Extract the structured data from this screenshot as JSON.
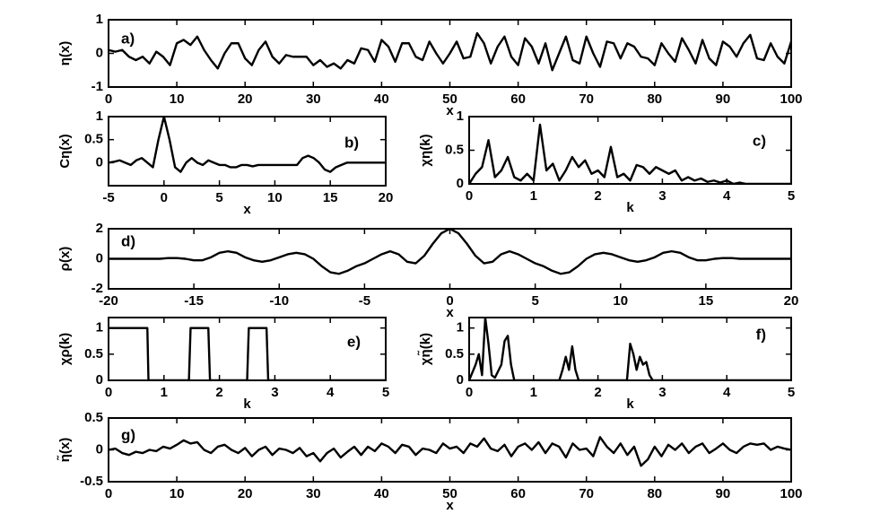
{
  "chart_data": [
    {
      "type": "line",
      "annotation": "a)",
      "xlabel": "x",
      "ylabel": "η(x)",
      "color": "#000000",
      "xlim": [
        0,
        100
      ],
      "ylim": [
        -1,
        1
      ],
      "xticks": [
        0,
        10,
        20,
        30,
        40,
        50,
        60,
        70,
        80,
        90,
        100
      ],
      "yticks": [
        -1,
        0,
        1
      ],
      "x": [
        0,
        1,
        2,
        3,
        4,
        5,
        6,
        7,
        8,
        9,
        10,
        11,
        12,
        13,
        14,
        15,
        16,
        17,
        18,
        19,
        20,
        21,
        22,
        23,
        24,
        25,
        26,
        27,
        28,
        29,
        30,
        31,
        32,
        33,
        34,
        35,
        36,
        37,
        38,
        39,
        40,
        41,
        42,
        43,
        44,
        45,
        46,
        47,
        48,
        49,
        50,
        51,
        52,
        53,
        54,
        55,
        56,
        57,
        58,
        59,
        60,
        61,
        62,
        63,
        64,
        65,
        66,
        67,
        68,
        69,
        70,
        71,
        72,
        73,
        74,
        75,
        76,
        77,
        78,
        79,
        80,
        81,
        82,
        83,
        84,
        85,
        86,
        87,
        88,
        89,
        90,
        91,
        92,
        93,
        94,
        95,
        96,
        97,
        98,
        99,
        100
      ],
      "values": [
        0.1,
        0.05,
        0.1,
        -0.1,
        -0.2,
        -0.1,
        -0.3,
        0.05,
        -0.1,
        -0.35,
        0.3,
        0.4,
        0.25,
        0.5,
        0.1,
        -0.2,
        -0.45,
        0.0,
        0.3,
        0.3,
        -0.15,
        -0.35,
        0.1,
        0.35,
        -0.1,
        -0.3,
        -0.05,
        -0.1,
        -0.1,
        -0.1,
        -0.35,
        -0.2,
        -0.4,
        -0.3,
        -0.45,
        -0.2,
        -0.3,
        0.15,
        0.1,
        -0.25,
        0.4,
        0.2,
        -0.25,
        0.3,
        0.3,
        -0.1,
        -0.2,
        0.35,
        0.0,
        -0.3,
        0.0,
        0.35,
        -0.15,
        -0.1,
        0.6,
        0.3,
        -0.3,
        0.2,
        0.5,
        -0.1,
        -0.35,
        0.45,
        0.2,
        -0.3,
        0.3,
        -0.5,
        0.0,
        0.5,
        -0.2,
        -0.3,
        0.5,
        0.0,
        -0.4,
        0.35,
        0.3,
        -0.15,
        0.3,
        0.2,
        -0.1,
        -0.15,
        -0.35,
        0.3,
        0.0,
        -0.25,
        0.45,
        0.1,
        -0.3,
        0.4,
        -0.15,
        -0.35,
        0.35,
        0.2,
        -0.1,
        0.3,
        0.55,
        -0.15,
        -0.2,
        0.3,
        -0.1,
        -0.3,
        0.35
      ]
    },
    {
      "type": "line",
      "annotation": "b)",
      "xlabel": "x",
      "ylabel": "Cη(x)",
      "color": "#000000",
      "xlim": [
        -5,
        20
      ],
      "ylim": [
        -0.5,
        1
      ],
      "xticks": [
        -5,
        0,
        5,
        10,
        15,
        20
      ],
      "yticks": [
        0,
        0.5,
        1
      ],
      "x": [
        -5,
        -4.5,
        -4,
        -3.5,
        -3,
        -2.5,
        -2,
        -1.5,
        -1,
        -0.5,
        0,
        0.5,
        1,
        1.5,
        2,
        2.5,
        3,
        3.5,
        4,
        4.5,
        5,
        5.5,
        6,
        6.5,
        7,
        7.5,
        8,
        8.5,
        9,
        9.5,
        10,
        10.5,
        11,
        11.5,
        12,
        12.5,
        13,
        13.5,
        14,
        14.5,
        15,
        15.5,
        16,
        16.5,
        17,
        17.5,
        18,
        18.5,
        19,
        19.5,
        20
      ],
      "values": [
        0,
        0.02,
        0.05,
        0,
        -0.05,
        0.05,
        0.1,
        0,
        -0.1,
        0.5,
        1,
        0.5,
        -0.1,
        -0.2,
        0,
        0.1,
        0,
        -0.05,
        0.05,
        0,
        -0.05,
        -0.05,
        -0.1,
        -0.1,
        -0.05,
        -0.05,
        -0.08,
        -0.05,
        -0.05,
        -0.05,
        -0.05,
        -0.05,
        -0.05,
        -0.05,
        -0.05,
        0.1,
        0.15,
        0.1,
        0,
        -0.15,
        -0.2,
        -0.1,
        -0.05,
        0,
        0,
        0,
        0,
        0,
        0,
        0,
        0
      ]
    },
    {
      "type": "line",
      "annotation": "c)",
      "xlabel": "k",
      "ylabel": "χη(k)",
      "color": "#000000",
      "xlim": [
        0,
        5
      ],
      "ylim": [
        0,
        1
      ],
      "xticks": [
        0,
        1,
        2,
        3,
        4,
        5
      ],
      "yticks": [
        0,
        0.5,
        1
      ],
      "x": [
        0,
        0.1,
        0.2,
        0.3,
        0.4,
        0.5,
        0.6,
        0.7,
        0.8,
        0.9,
        1,
        1.1,
        1.2,
        1.3,
        1.4,
        1.5,
        1.6,
        1.7,
        1.8,
        1.9,
        2,
        2.1,
        2.2,
        2.3,
        2.4,
        2.5,
        2.6,
        2.7,
        2.8,
        2.9,
        3,
        3.1,
        3.2,
        3.3,
        3.4,
        3.5,
        3.6,
        3.7,
        3.8,
        3.9,
        4,
        4.1,
        4.2,
        4.3,
        4.4,
        4.5,
        4.6,
        4.7,
        4.8,
        4.9,
        5
      ],
      "values": [
        0,
        0.15,
        0.25,
        0.65,
        0.1,
        0.2,
        0.4,
        0.1,
        0.05,
        0.15,
        0.05,
        0.88,
        0.2,
        0.3,
        0.05,
        0.2,
        0.4,
        0.25,
        0.35,
        0.15,
        0.2,
        0.1,
        0.55,
        0.1,
        0.15,
        0.05,
        0.28,
        0.25,
        0.15,
        0.25,
        0.2,
        0.15,
        0.2,
        0.05,
        0.1,
        0.05,
        0.08,
        0.03,
        0.05,
        0.02,
        0.05,
        0,
        0.02,
        0,
        0,
        0,
        0,
        0,
        0,
        0,
        0
      ]
    },
    {
      "type": "line",
      "annotation": "d)",
      "xlabel": "x",
      "ylabel": "ρ(x)",
      "color": "#000000",
      "xlim": [
        -20,
        20
      ],
      "ylim": [
        -2,
        2
      ],
      "xticks": [
        -20,
        -15,
        -10,
        -5,
        0,
        5,
        10,
        15,
        20
      ],
      "yticks": [
        -2,
        0,
        2
      ],
      "x": [
        -20,
        -19.5,
        -19,
        -18.5,
        -18,
        -17.5,
        -17,
        -16.5,
        -16,
        -15.5,
        -15,
        -14.5,
        -14,
        -13.5,
        -13,
        -12.5,
        -12,
        -11.5,
        -11,
        -10.5,
        -10,
        -9.5,
        -9,
        -8.5,
        -8,
        -7.5,
        -7,
        -6.5,
        -6,
        -5.5,
        -5,
        -4.5,
        -4,
        -3.5,
        -3,
        -2.5,
        -2,
        -1.5,
        -1,
        -0.5,
        0,
        0.5,
        1,
        1.5,
        2,
        2.5,
        3,
        3.5,
        4,
        4.5,
        5,
        5.5,
        6,
        6.5,
        7,
        7.5,
        8,
        8.5,
        9,
        9.5,
        10,
        10.5,
        11,
        11.5,
        12,
        12.5,
        13,
        13.5,
        14,
        14.5,
        15,
        15.5,
        16,
        16.5,
        17,
        17.5,
        18,
        18.5,
        19,
        19.5,
        20
      ],
      "values": [
        0,
        0,
        0,
        0,
        0,
        0,
        0,
        0.05,
        0.05,
        0,
        -0.1,
        -0.1,
        0.1,
        0.4,
        0.5,
        0.4,
        0.1,
        -0.1,
        -0.2,
        -0.1,
        0.1,
        0.3,
        0.4,
        0.3,
        0,
        -0.5,
        -0.9,
        -1.0,
        -0.8,
        -0.5,
        -0.3,
        0,
        0.3,
        0.5,
        0.3,
        -0.2,
        -0.3,
        0.2,
        1.0,
        1.7,
        2,
        1.7,
        1.0,
        0.2,
        -0.3,
        -0.2,
        0.3,
        0.5,
        0.3,
        0,
        -0.3,
        -0.5,
        -0.8,
        -1.0,
        -0.9,
        -0.5,
        0,
        0.3,
        0.4,
        0.3,
        0.1,
        -0.1,
        -0.2,
        -0.1,
        0.1,
        0.4,
        0.5,
        0.4,
        0.1,
        -0.1,
        -0.1,
        0,
        0.05,
        0.05,
        0,
        0,
        0,
        0,
        0,
        0,
        0
      ]
    },
    {
      "type": "line",
      "annotation": "e)",
      "xlabel": "k",
      "ylabel": "χρ(k)",
      "color": "#000000",
      "xlim": [
        0,
        5
      ],
      "ylim": [
        0,
        1.2
      ],
      "xticks": [
        0,
        1,
        2,
        3,
        4,
        5
      ],
      "yticks": [
        0,
        0.5,
        1
      ],
      "x": [
        0,
        0.7,
        0.72,
        1.45,
        1.48,
        1.8,
        1.83,
        2.5,
        2.53,
        2.85,
        2.88,
        5
      ],
      "values": [
        1,
        1,
        0,
        0,
        1,
        1,
        0,
        0,
        1,
        1,
        0,
        0
      ]
    },
    {
      "type": "line",
      "annotation": "f)",
      "xlabel": "k",
      "ylabel": "χη̃(k)",
      "color": "#000000",
      "xlim": [
        0,
        5
      ],
      "ylim": [
        0,
        1.2
      ],
      "xticks": [
        0,
        1,
        2,
        3,
        4,
        5
      ],
      "yticks": [
        0,
        0.5,
        1
      ],
      "x": [
        0,
        0.1,
        0.15,
        0.2,
        0.25,
        0.3,
        0.35,
        0.4,
        0.5,
        0.55,
        0.6,
        0.65,
        0.7,
        1.4,
        1.45,
        1.5,
        1.55,
        1.6,
        1.65,
        1.7,
        2.45,
        2.5,
        2.55,
        2.6,
        2.65,
        2.7,
        2.75,
        2.8,
        2.85,
        5
      ],
      "values": [
        0,
        0.3,
        0.5,
        0.1,
        1.2,
        0.7,
        0.1,
        0.05,
        0.3,
        0.75,
        0.85,
        0.3,
        0,
        0,
        0.2,
        0.45,
        0.2,
        0.65,
        0.2,
        0,
        0,
        0.7,
        0.5,
        0.2,
        0.45,
        0.3,
        0.35,
        0.1,
        0,
        0
      ]
    },
    {
      "type": "line",
      "annotation": "g)",
      "xlabel": "x",
      "ylabel": "η̃(x)",
      "color": "#000000",
      "xlim": [
        0,
        100
      ],
      "ylim": [
        -0.5,
        0.5
      ],
      "xticks": [
        0,
        10,
        20,
        30,
        40,
        50,
        60,
        70,
        80,
        90,
        100
      ],
      "yticks": [
        -0.5,
        0,
        0.5
      ],
      "x": [
        0,
        1,
        2,
        3,
        4,
        5,
        6,
        7,
        8,
        9,
        10,
        11,
        12,
        13,
        14,
        15,
        16,
        17,
        18,
        19,
        20,
        21,
        22,
        23,
        24,
        25,
        26,
        27,
        28,
        29,
        30,
        31,
        32,
        33,
        34,
        35,
        36,
        37,
        38,
        39,
        40,
        41,
        42,
        43,
        44,
        45,
        46,
        47,
        48,
        49,
        50,
        51,
        52,
        53,
        54,
        55,
        56,
        57,
        58,
        59,
        60,
        61,
        62,
        63,
        64,
        65,
        66,
        67,
        68,
        69,
        70,
        71,
        72,
        73,
        74,
        75,
        76,
        77,
        78,
        79,
        80,
        81,
        82,
        83,
        84,
        85,
        86,
        87,
        88,
        89,
        90,
        91,
        92,
        93,
        94,
        95,
        96,
        97,
        98,
        99,
        100
      ],
      "values": [
        0,
        0.02,
        -0.05,
        -0.08,
        -0.03,
        -0.05,
        0,
        -0.02,
        0.05,
        0.02,
        0.08,
        0.15,
        0.1,
        0.12,
        0,
        -0.05,
        0.05,
        0.08,
        0,
        -0.05,
        0.03,
        -0.1,
        0,
        0.05,
        -0.08,
        0.02,
        0,
        -0.05,
        0.03,
        -0.1,
        -0.05,
        -0.18,
        -0.05,
        0.02,
        -0.12,
        -0.03,
        0.05,
        -0.08,
        0.05,
        -0.02,
        0.1,
        0.05,
        -0.05,
        0.08,
        0.05,
        -0.08,
        0.02,
        0,
        -0.05,
        0.1,
        0.02,
        0.05,
        -0.05,
        0.1,
        0.05,
        0.18,
        0.02,
        -0.02,
        0.08,
        -0.1,
        0.05,
        0.1,
        0,
        0.12,
        -0.05,
        0.1,
        0.05,
        -0.12,
        0.1,
        0,
        0.02,
        -0.1,
        0.2,
        0.05,
        -0.05,
        0.1,
        -0.08,
        0.05,
        -0.25,
        -0.15,
        0.05,
        -0.1,
        0.08,
        0,
        0.1,
        -0.05,
        0.05,
        0.1,
        -0.05,
        0.02,
        0.1,
        0,
        -0.05,
        0.05,
        0.1,
        0.08,
        0.1,
        0,
        0.05,
        0.02,
        0
      ]
    }
  ]
}
